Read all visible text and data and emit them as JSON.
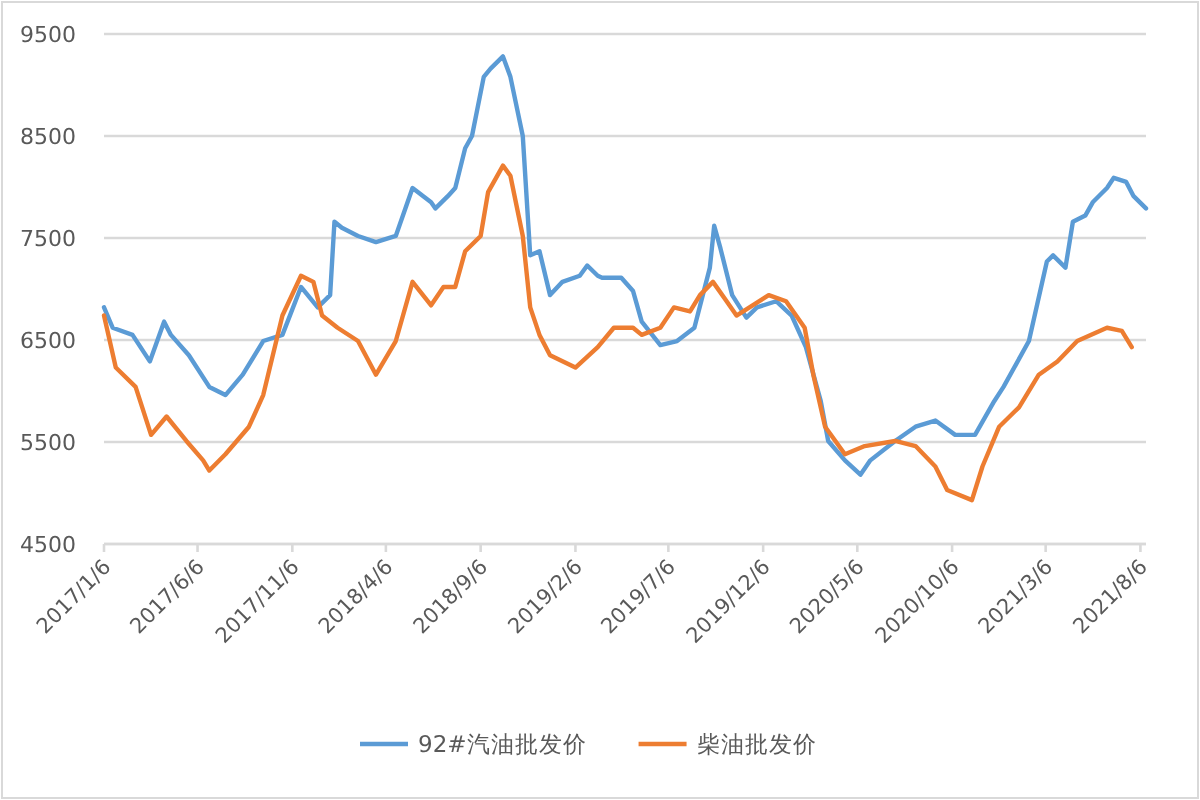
{
  "chart_data": {
    "type": "line",
    "legend": "bottom",
    "grid": "y",
    "xlim": [
      "2017-01-06",
      "2021-08-15"
    ],
    "ylim": [
      4500,
      9500
    ],
    "yticks": [
      4500,
      5500,
      6500,
      7500,
      8500,
      9500
    ],
    "xticks": [
      {
        "value": "2017-01-06",
        "label": "2017/1/6"
      },
      {
        "value": "2017-06-06",
        "label": "2017/6/6"
      },
      {
        "value": "2017-11-06",
        "label": "2017/11/6"
      },
      {
        "value": "2018-04-06",
        "label": "2018/4/6"
      },
      {
        "value": "2018-09-06",
        "label": "2018/9/6"
      },
      {
        "value": "2019-02-06",
        "label": "2019/2/6"
      },
      {
        "value": "2019-07-06",
        "label": "2019/7/6"
      },
      {
        "value": "2019-12-06",
        "label": "2019/12/6"
      },
      {
        "value": "2020-05-06",
        "label": "2020/5/6"
      },
      {
        "value": "2020-10-06",
        "label": "2020/10/6"
      },
      {
        "value": "2021-03-06",
        "label": "2021/3/6"
      },
      {
        "value": "2021-08-06",
        "label": "2021/8/6"
      }
    ],
    "series": [
      {
        "name": "92#汽油批发价",
        "color": "#5b9bd5",
        "x": [
          "2017-01-06",
          "2017-01-20",
          "2017-02-21",
          "2017-03-21",
          "2017-04-13",
          "2017-04-24",
          "2017-05-23",
          "2017-06-25",
          "2017-07-21",
          "2017-08-18",
          "2017-09-20",
          "2017-10-21",
          "2017-11-20",
          "2017-12-17",
          "2018-01-06",
          "2018-01-13",
          "2018-01-25",
          "2018-02-20",
          "2018-03-21",
          "2018-04-22",
          "2018-05-19",
          "2018-06-18",
          "2018-06-25",
          "2018-07-15",
          "2018-07-27",
          "2018-08-12",
          "2018-08-23",
          "2018-09-11",
          "2018-09-22",
          "2018-10-12",
          "2018-10-24",
          "2018-11-13",
          "2018-11-25",
          "2018-12-10",
          "2018-12-27",
          "2019-01-16",
          "2019-02-13",
          "2019-02-25",
          "2019-03-14",
          "2019-03-21",
          "2019-04-21",
          "2019-05-10",
          "2019-05-24",
          "2019-06-23",
          "2019-07-20",
          "2019-08-17",
          "2019-09-11",
          "2019-09-18",
          "2019-09-28",
          "2019-10-17",
          "2019-11-09",
          "2019-11-26",
          "2019-12-27",
          "2020-01-21",
          "2020-02-13",
          "2020-03-08",
          "2020-03-20",
          "2020-04-16",
          "2020-05-11",
          "2020-05-27",
          "2020-07-06",
          "2020-08-08",
          "2020-09-09",
          "2020-10-11",
          "2020-11-12",
          "2020-12-13",
          "2020-12-28",
          "2021-02-07",
          "2021-03-08",
          "2021-03-18",
          "2021-04-07",
          "2021-04-19",
          "2021-05-09",
          "2021-05-21",
          "2021-06-13",
          "2021-06-24",
          "2021-07-14",
          "2021-07-26",
          "2021-08-15"
        ],
        "values": [
          6820,
          6620,
          6550,
          6290,
          6680,
          6550,
          6350,
          6040,
          5960,
          6160,
          6490,
          6550,
          7020,
          6820,
          6940,
          7660,
          7600,
          7520,
          7460,
          7520,
          7990,
          7850,
          7790,
          7910,
          7990,
          8380,
          8500,
          9080,
          9160,
          9280,
          9080,
          8500,
          7330,
          7370,
          6940,
          7070,
          7130,
          7230,
          7130,
          7110,
          7110,
          6980,
          6680,
          6450,
          6490,
          6620,
          7210,
          7620,
          7400,
          6940,
          6720,
          6820,
          6880,
          6740,
          6430,
          5900,
          5510,
          5320,
          5180,
          5320,
          5510,
          5650,
          5710,
          5570,
          5570,
          5900,
          6040,
          6490,
          7270,
          7330,
          7210,
          7660,
          7720,
          7850,
          7990,
          8090,
          8050,
          7910,
          7790
        ]
      },
      {
        "name": "柴油批发价",
        "color": "#ed7d31",
        "x": [
          "2017-01-06",
          "2017-01-25",
          "2017-02-26",
          "2017-03-23",
          "2017-04-17",
          "2017-05-19",
          "2017-06-15",
          "2017-06-25",
          "2017-07-21",
          "2017-08-28",
          "2017-09-20",
          "2017-10-21",
          "2017-11-20",
          "2017-12-10",
          "2017-12-24",
          "2018-01-18",
          "2018-02-20",
          "2018-03-21",
          "2018-04-22",
          "2018-05-19",
          "2018-06-18",
          "2018-07-08",
          "2018-07-27",
          "2018-08-12",
          "2018-09-06",
          "2018-09-18",
          "2018-10-12",
          "2018-10-24",
          "2018-11-13",
          "2018-11-25",
          "2018-12-10",
          "2018-12-27",
          "2019-02-06",
          "2019-03-14",
          "2019-04-09",
          "2019-05-10",
          "2019-05-24",
          "2019-06-23",
          "2019-07-15",
          "2019-08-10",
          "2019-08-26",
          "2019-09-16",
          "2019-10-08",
          "2019-10-24",
          "2019-11-19",
          "2019-12-15",
          "2020-01-12",
          "2020-02-11",
          "2020-02-25",
          "2020-03-15",
          "2020-04-16",
          "2020-05-18",
          "2020-07-06",
          "2020-08-08",
          "2020-09-09",
          "2020-09-28",
          "2020-11-07",
          "2020-11-24",
          "2020-12-21",
          "2021-01-22",
          "2021-02-23",
          "2021-03-25",
          "2021-04-26",
          "2021-06-13",
          "2021-07-07",
          "2021-07-23"
        ],
        "values": [
          6740,
          6230,
          6040,
          5570,
          5750,
          5510,
          5320,
          5220,
          5380,
          5650,
          5960,
          6740,
          7130,
          7070,
          6740,
          6620,
          6490,
          6160,
          6490,
          7070,
          6840,
          7020,
          7020,
          7370,
          7520,
          7950,
          8210,
          8110,
          7520,
          6820,
          6550,
          6350,
          6230,
          6430,
          6620,
          6620,
          6550,
          6620,
          6820,
          6780,
          6940,
          7070,
          6880,
          6740,
          6840,
          6940,
          6880,
          6620,
          6160,
          5650,
          5380,
          5460,
          5510,
          5460,
          5260,
          5030,
          4930,
          5260,
          5650,
          5840,
          6160,
          6290,
          6490,
          6620,
          6590,
          6430
        ]
      }
    ]
  }
}
